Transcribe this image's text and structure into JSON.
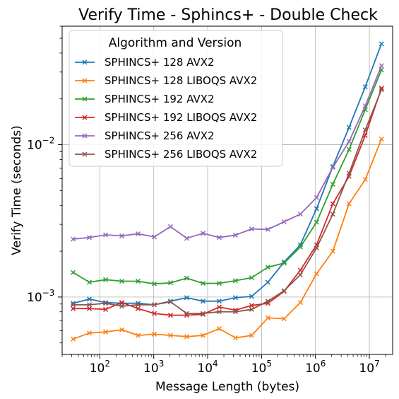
{
  "chart_data": {
    "type": "line",
    "title": "Verify Time - Sphincs+ - Double Check",
    "xlabel": "Message Length (bytes)",
    "ylabel": "Verify Time (seconds)",
    "xscale": "log",
    "yscale": "log",
    "xlim": [
      20,
      27000000
    ],
    "ylim": [
      0.00042,
      0.06
    ],
    "grid": true,
    "legend_title": "Algorithm and Version",
    "legend_position": "top-left",
    "x_ticks": [
      {
        "value": 100,
        "base": "10",
        "exp": "2"
      },
      {
        "value": 1000,
        "base": "10",
        "exp": "3"
      },
      {
        "value": 10000,
        "base": "10",
        "exp": "4"
      },
      {
        "value": 100000,
        "base": "10",
        "exp": "5"
      },
      {
        "value": 1000000,
        "base": "10",
        "exp": "6"
      },
      {
        "value": 10000000,
        "base": "10",
        "exp": "7"
      }
    ],
    "y_ticks": [
      {
        "value": 0.001,
        "base": "10",
        "exp": "−3"
      },
      {
        "value": 0.01,
        "base": "10",
        "exp": "−2"
      }
    ],
    "x": [
      32,
      64,
      128,
      256,
      512,
      1024,
      2048,
      4096,
      8192,
      16384,
      32768,
      65536,
      131072,
      262144,
      524288,
      1048576,
      2097152,
      4194304,
      8388608,
      16777216
    ],
    "series": [
      {
        "name": "SPHINCS+ 128 AVX2",
        "color": "#1f77b4",
        "values": [
          0.00091,
          0.00097,
          0.00092,
          0.00091,
          0.00091,
          0.00089,
          0.00094,
          0.00099,
          0.00094,
          0.00094,
          0.00099,
          0.00101,
          0.00125,
          0.0017,
          0.0022,
          0.0038,
          0.0072,
          0.013,
          0.024,
          0.046
        ]
      },
      {
        "name": "SPHINCS+ 128 LIBOQS AVX2",
        "color": "#ff7f0e",
        "values": [
          0.00053,
          0.00058,
          0.00059,
          0.00061,
          0.00056,
          0.00057,
          0.00056,
          0.00055,
          0.00056,
          0.00062,
          0.00054,
          0.00056,
          0.00073,
          0.00072,
          0.00092,
          0.00142,
          0.002,
          0.0041,
          0.0059,
          0.0109
        ]
      },
      {
        "name": "SPHINCS+ 192 AVX2",
        "color": "#2ca02c",
        "values": [
          0.00145,
          0.00125,
          0.0013,
          0.00127,
          0.00127,
          0.00122,
          0.00124,
          0.00133,
          0.00123,
          0.00123,
          0.00128,
          0.00134,
          0.00157,
          0.00167,
          0.00213,
          0.0031,
          0.0055,
          0.0093,
          0.017,
          0.031
        ]
      },
      {
        "name": "SPHINCS+ 192 LIBOQS AVX2",
        "color": "#d62728",
        "values": [
          0.00084,
          0.00084,
          0.00083,
          0.00092,
          0.00084,
          0.00078,
          0.00076,
          0.00076,
          0.00077,
          0.00086,
          0.00082,
          0.00088,
          0.00091,
          0.00109,
          0.0015,
          0.0022,
          0.0041,
          0.0062,
          0.0115,
          0.0235
        ]
      },
      {
        "name": "SPHINCS+ 256 AVX2",
        "color": "#9467bd",
        "values": [
          0.0024,
          0.00246,
          0.00256,
          0.00252,
          0.0026,
          0.00248,
          0.0029,
          0.00243,
          0.00262,
          0.00246,
          0.00255,
          0.0028,
          0.00278,
          0.00312,
          0.0035,
          0.0045,
          0.0071,
          0.0105,
          0.018,
          0.033
        ]
      },
      {
        "name": "SPHINCS+ 256 LIBOQS AVX2",
        "color": "#8c564b",
        "values": [
          0.00089,
          0.00089,
          0.00091,
          0.00087,
          0.00089,
          0.00089,
          0.00093,
          0.00078,
          0.00078,
          0.0008,
          0.0008,
          0.00083,
          0.00094,
          0.0011,
          0.0014,
          0.0021,
          0.0035,
          0.0065,
          0.0125,
          0.023
        ]
      }
    ]
  }
}
